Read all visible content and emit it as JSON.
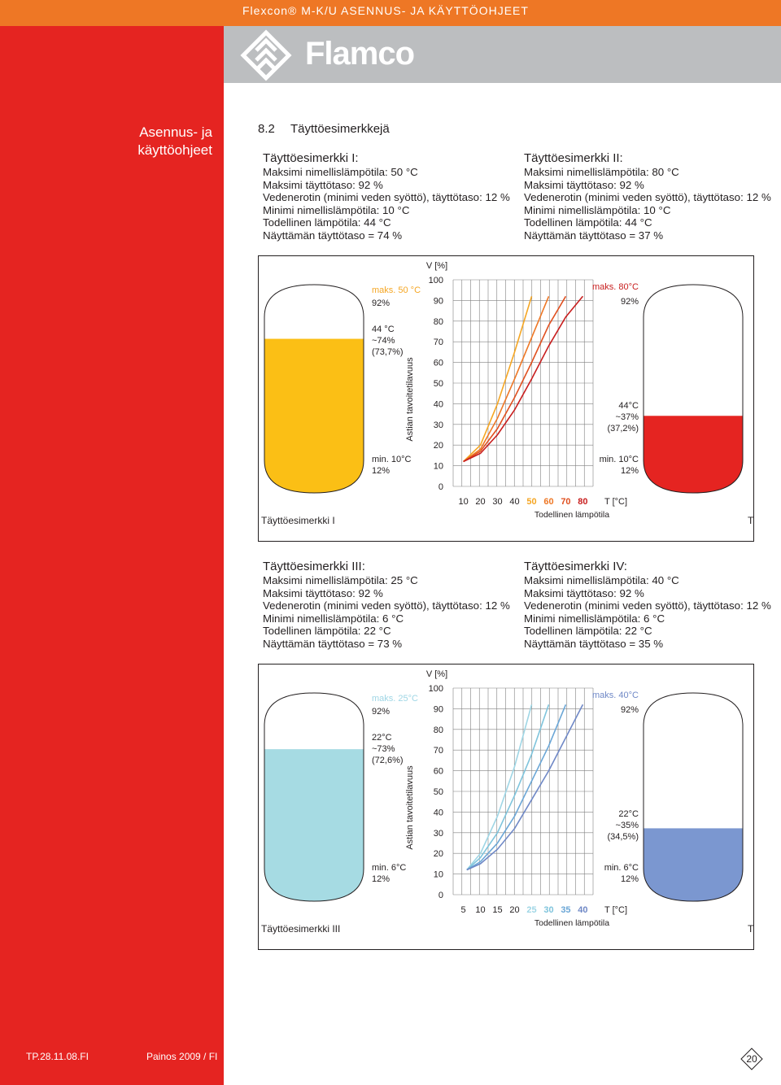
{
  "header": {
    "title": "Flexcon® M-K/U ASENNUS- JA KÄYTTÖOHJEET",
    "brand": "Flamco"
  },
  "sidebar": {
    "title_line1": "Asennus- ja",
    "title_line2": "käyttöohjeet"
  },
  "section": {
    "number": "8.2",
    "title": "Täyttöesimerkkejä"
  },
  "examples": [
    {
      "title": "Täyttöesimerkki I:",
      "lines": [
        "Maksimi nimellislämpötila: 50 °C",
        "Maksimi täyttötaso: 92 %",
        "Vedenerotin (minimi veden syöttö), täyttötaso: 12 %",
        "Minimi nimellislämpötila: 10 °C",
        "Todellinen lämpötila: 44 °C",
        "Näyttämän täyttötaso = 74 %"
      ]
    },
    {
      "title": "Täyttöesimerkki II:",
      "lines": [
        "Maksimi nimellislämpötila: 80 °C",
        "Maksimi täyttötaso: 92 %",
        "Vedenerotin (minimi veden syöttö), täyttötaso: 12 %",
        "Minimi nimellislämpötila: 10 °C",
        "Todellinen lämpötila: 44 °C",
        "Näyttämän täyttötaso = 37 %"
      ]
    },
    {
      "title": "Täyttöesimerkki III:",
      "lines": [
        "Maksimi nimellislämpötila: 25 °C",
        "Maksimi täyttötaso: 92 %",
        "Vedenerotin (minimi veden syöttö), täyttötaso: 12 %",
        "Minimi nimellislämpötila: 6 °C",
        "Todellinen lämpötila: 22 °C",
        "Näyttämän täyttötaso = 73 %"
      ]
    },
    {
      "title": "Täyttöesimerkki IV:",
      "lines": [
        "Maksimi nimellislämpötila: 40 °C",
        "Maksimi täyttötaso: 92 %",
        "Vedenerotin (minimi veden syöttö), täyttötaso: 12 %",
        "Minimi nimellislämpötila: 6 °C",
        "Todellinen lämpötila: 22 °C",
        "Näyttämän täyttötaso = 35 %"
      ]
    }
  ],
  "chart_data": [
    {
      "type": "line",
      "ylabel": "V [%]",
      "yaxis_title": "Astian tavoitetilavuus",
      "xlabel": "T [°C]",
      "xaxis_title": "Todellinen lämpötila",
      "ylim": [
        0,
        100
      ],
      "yticks": [
        "0",
        "10",
        "20",
        "30",
        "40",
        "50",
        "60",
        "70",
        "80",
        "90",
        "100"
      ],
      "xticks": [
        "10",
        "20",
        "30",
        "40",
        "50",
        "60",
        "70",
        "80"
      ],
      "xticks_values": [
        10,
        20,
        30,
        40,
        50,
        60,
        70,
        80
      ],
      "xtick_colors": [
        "#231f20",
        "#231f20",
        "#231f20",
        "#231f20",
        "#f5a623",
        "#ee7725",
        "#e05020",
        "#c81e1e"
      ],
      "series": [
        {
          "color": "#f5a623",
          "points": [
            [
              10,
              12
            ],
            [
              20,
              20
            ],
            [
              30,
              40
            ],
            [
              40,
              65
            ],
            [
              50,
              92
            ]
          ]
        },
        {
          "color": "#ee7725",
          "points": [
            [
              10,
              12
            ],
            [
              20,
              18
            ],
            [
              30,
              33
            ],
            [
              40,
              52
            ],
            [
              50,
              72
            ],
            [
              60,
              92
            ]
          ]
        },
        {
          "color": "#e05020",
          "points": [
            [
              10,
              12
            ],
            [
              20,
              17
            ],
            [
              30,
              28
            ],
            [
              40,
              43
            ],
            [
              50,
              60
            ],
            [
              60,
              78
            ],
            [
              70,
              92
            ]
          ]
        },
        {
          "color": "#c81e1e",
          "points": [
            [
              10,
              12
            ],
            [
              20,
              16
            ],
            [
              30,
              25
            ],
            [
              40,
              37
            ],
            [
              50,
              52
            ],
            [
              60,
              68
            ],
            [
              70,
              82
            ],
            [
              80,
              92
            ]
          ]
        }
      ],
      "left_vessel": {
        "name": "Täyttöesimerkki I",
        "max": "maks. 50 °C",
        "max_color": "#f5a623",
        "max_pct": "92%",
        "actual_temp": "44 °C",
        "actual_pct": "~74%",
        "actual_exact": "(73,7%)",
        "min": "min. 10°C",
        "min_pct": "12%",
        "fill": 0.74,
        "fill_color": "#fbbf15"
      },
      "right_vessel": {
        "name": "Täyttöesimerkki II",
        "max": "maks. 80°C",
        "max_color": "#c81e1e",
        "max_pct": "92%",
        "actual_temp": "44°C",
        "actual_pct": "~37%",
        "actual_exact": "(37,2%)",
        "min": "min. 10°C",
        "min_pct": "12%",
        "fill": 0.37,
        "fill_color": "#e52421"
      }
    },
    {
      "type": "line",
      "ylabel": "V [%]",
      "yaxis_title": "Astian tavoitetilavuus",
      "xlabel": "T [°C]",
      "xaxis_title": "Todellinen lämpötila",
      "ylim": [
        0,
        100
      ],
      "yticks": [
        "0",
        "10",
        "20",
        "30",
        "40",
        "50",
        "60",
        "70",
        "80",
        "90",
        "100"
      ],
      "xticks": [
        "5",
        "10",
        "15",
        "20",
        "25",
        "30",
        "35",
        "40"
      ],
      "xticks_values": [
        5,
        10,
        15,
        20,
        25,
        30,
        35,
        40
      ],
      "xtick_colors": [
        "#231f20",
        "#231f20",
        "#231f20",
        "#231f20",
        "#9fd6e5",
        "#7fc4dc",
        "#6aa6d6",
        "#6f88c6"
      ],
      "series": [
        {
          "color": "#9fd6e5",
          "points": [
            [
              6,
              12
            ],
            [
              10,
              20
            ],
            [
              15,
              38
            ],
            [
              20,
              62
            ],
            [
              25,
              92
            ]
          ]
        },
        {
          "color": "#7fc4dc",
          "points": [
            [
              6,
              12
            ],
            [
              10,
              18
            ],
            [
              15,
              30
            ],
            [
              20,
              48
            ],
            [
              25,
              68
            ],
            [
              30,
              92
            ]
          ]
        },
        {
          "color": "#6aa6d6",
          "points": [
            [
              6,
              12
            ],
            [
              10,
              16
            ],
            [
              15,
              25
            ],
            [
              20,
              38
            ],
            [
              25,
              55
            ],
            [
              30,
              72
            ],
            [
              35,
              92
            ]
          ]
        },
        {
          "color": "#6f88c6",
          "points": [
            [
              6,
              12
            ],
            [
              10,
              15
            ],
            [
              15,
              22
            ],
            [
              20,
              32
            ],
            [
              25,
              46
            ],
            [
              30,
              60
            ],
            [
              35,
              76
            ],
            [
              40,
              92
            ]
          ]
        }
      ],
      "left_vessel": {
        "name": "Täyttöesimerkki III",
        "max": "maks. 25°C",
        "max_color": "#9fd6e5",
        "max_pct": "92%",
        "actual_temp": "22°C",
        "actual_pct": "~73%",
        "actual_exact": "(72,6%)",
        "min": "min. 6°C",
        "min_pct": "12%",
        "fill": 0.73,
        "fill_color": "#a6dbe3"
      },
      "right_vessel": {
        "name": "Täyttöesimerkki IV",
        "max": "maks. 40°C",
        "max_color": "#6f88c6",
        "max_pct": "92%",
        "actual_temp": "22°C",
        "actual_pct": "~35%",
        "actual_exact": "(34,5%)",
        "min": "min. 6°C",
        "min_pct": "12%",
        "fill": 0.35,
        "fill_color": "#7b97d0"
      }
    }
  ],
  "footer": {
    "code": "TP.28.11.08.FI",
    "edition": "Painos 2009 / FI",
    "page": "20"
  }
}
